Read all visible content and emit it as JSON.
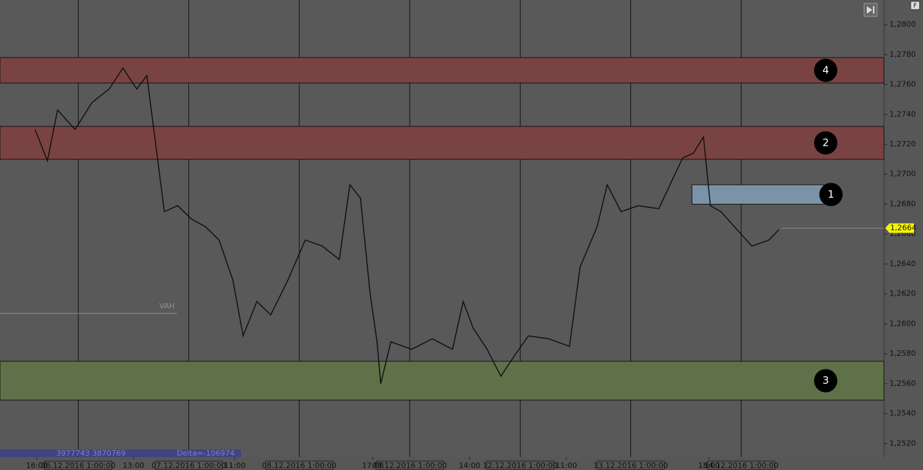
{
  "chart_data": {
    "type": "line",
    "x": [
      -9.4,
      -6.7,
      -4.5,
      -0.7,
      3,
      6.7,
      9.7,
      12.7,
      14.9,
      16.4,
      18.7,
      21.6,
      24.6,
      27.6,
      30.6,
      33.6,
      35.8,
      38.8,
      41.8,
      45.5,
      49.3,
      53,
      56.7,
      59,
      61.3,
      63.4,
      64.9,
      65.7,
      67.9,
      72.4,
      76.9,
      81.3,
      83.6,
      85.8,
      88.8,
      91.8,
      94.8,
      97.8,
      102.2,
      106.7,
      109,
      112.7,
      114.9,
      117.9,
      121.6,
      126.1,
      129.9,
      131.3,
      133.6,
      135.8,
      137.3,
      139.6,
      142.5,
      146.3,
      150,
      152.2
    ],
    "series": [
      {
        "color": "#111111",
        "values": [
          1.273,
          1.2709,
          1.2743,
          1.273,
          1.2748,
          1.2757,
          1.2771,
          1.2757,
          1.2766,
          1.273,
          1.2675,
          1.2679,
          1.267,
          1.2665,
          1.2656,
          1.2629,
          1.2592,
          1.2615,
          1.2606,
          1.2629,
          1.2656,
          1.2652,
          1.2643,
          1.2693,
          1.2684,
          1.262,
          1.2588,
          1.256,
          1.2588,
          1.2583,
          1.259,
          1.2583,
          1.2615,
          1.2597,
          1.2583,
          1.2565,
          1.2579,
          1.2592,
          1.259,
          1.2585,
          1.2638,
          1.2665,
          1.2693,
          1.2675,
          1.2679,
          1.2677,
          1.2702,
          1.2711,
          1.2714,
          1.2725,
          1.2679,
          1.2675,
          1.2665,
          1.2652,
          1.2656,
          1.2663
        ]
      }
    ],
    "xlim": [
      -17,
      175
    ],
    "xticks": [
      {
        "value": -9,
        "label": "16:00"
      },
      {
        "value": 12,
        "label": "13:00"
      },
      {
        "value": 34,
        "label": "11:00"
      },
      {
        "value": 64,
        "label": "17:00"
      },
      {
        "value": 85,
        "label": "14:00"
      },
      {
        "value": 106,
        "label": "11:00"
      },
      {
        "value": 137,
        "label": "18:00"
      }
    ],
    "day_lines": [
      {
        "value": 0,
        "label": "06.12.2016 1:00:00"
      },
      {
        "value": 24,
        "label": "07.12.2016 1:00:00"
      },
      {
        "value": 48,
        "label": "08.12.2016 1:00:00"
      },
      {
        "value": 72,
        "label": "09.12.2016 1:00:00"
      },
      {
        "value": 96,
        "label": "12.12.2016 1:00:00"
      },
      {
        "value": 120,
        "label": "13.12.2016 1:00:00"
      },
      {
        "value": 144,
        "label": "14.12.2016 1:00:00"
      }
    ],
    "ylim": [
      1.2511,
      1.28165
    ],
    "yticks": [
      {
        "value": 1.252,
        "label": "1,2520"
      },
      {
        "value": 1.254,
        "label": "1,2540"
      },
      {
        "value": 1.256,
        "label": "1,2560"
      },
      {
        "value": 1.258,
        "label": "1,2580"
      },
      {
        "value": 1.26,
        "label": "1,2600"
      },
      {
        "value": 1.262,
        "label": "1,2620"
      },
      {
        "value": 1.264,
        "label": "1,2640"
      },
      {
        "value": 1.266,
        "label": "1,2660"
      },
      {
        "value": 1.268,
        "label": "1,2680"
      },
      {
        "value": 1.27,
        "label": "1,2700"
      },
      {
        "value": 1.272,
        "label": "1,2720"
      },
      {
        "value": 1.274,
        "label": "1,2740"
      },
      {
        "value": 1.276,
        "label": "1,2760"
      },
      {
        "value": 1.278,
        "label": "1,2780"
      },
      {
        "value": 1.28,
        "label": "1,2800"
      }
    ],
    "zones": [
      {
        "label": "4",
        "range": [
          1.2761,
          1.2778
        ],
        "color": "#7a4343"
      },
      {
        "label": "2",
        "range": [
          1.271,
          1.2732
        ],
        "color": "#7a4343"
      },
      {
        "label": "1",
        "range": [
          1.268,
          1.2693
        ],
        "xrange": [
          133.3,
          162
        ],
        "color": "#7a93a8"
      },
      {
        "label": "3",
        "range": [
          1.2549,
          1.2575
        ],
        "color": "#5f7148"
      }
    ],
    "last_price": {
      "value": 1.2664,
      "label": "1,2664"
    },
    "vah": {
      "value": 1.2607,
      "label": "VAH"
    },
    "footer_volume": "3977743 3870769",
    "footer_delta": "Delta=-106974",
    "corner_label": "F"
  }
}
